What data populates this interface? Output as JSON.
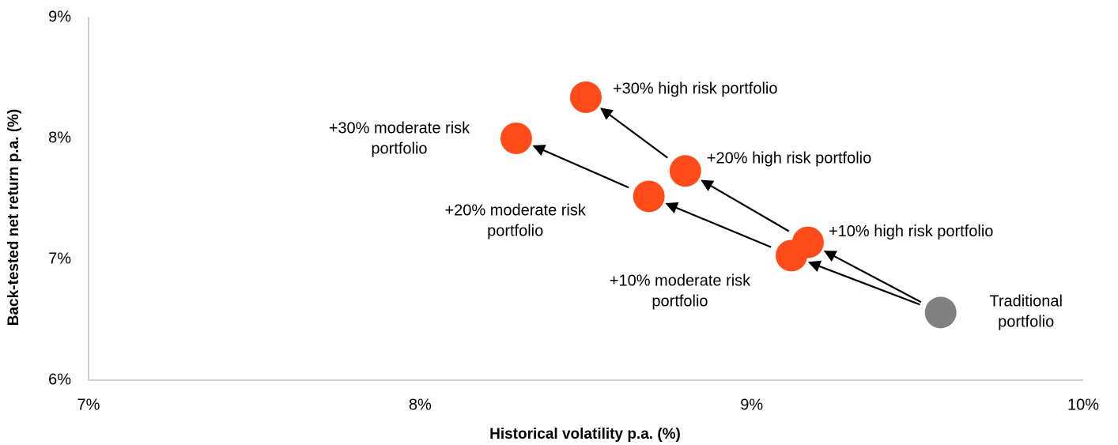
{
  "chart_data": {
    "type": "scatter",
    "xlabel": "Historical volatility p.a. (%)",
    "ylabel": "Back-tested net return p.a. (%)",
    "xlim": [
      7,
      10
    ],
    "xticks": [
      {
        "value": 7,
        "label": "7%"
      },
      {
        "value": 8,
        "label": "8%"
      },
      {
        "value": 9,
        "label": "9%"
      },
      {
        "value": 10,
        "label": "10%"
      }
    ],
    "ylim": [
      6,
      9
    ],
    "yticks": [
      {
        "value": 6,
        "label": "6%"
      },
      {
        "value": 7,
        "label": "7%"
      },
      {
        "value": 8,
        "label": "8%"
      },
      {
        "value": 9,
        "label": "9%"
      }
    ],
    "points": [
      {
        "label": [
          "Traditional",
          "portfolio"
        ],
        "x": 9.57,
        "y": 6.56,
        "color": "#808080"
      },
      {
        "label": [
          "+10% moderate risk",
          "portfolio"
        ],
        "x": 9.12,
        "y": 7.03,
        "color": "#ff4c1a"
      },
      {
        "label": [
          "+10% high risk portfolio"
        ],
        "x": 9.17,
        "y": 7.14,
        "color": "#ff4c1a"
      },
      {
        "label": [
          "+20% moderate risk",
          "portfolio"
        ],
        "x": 8.69,
        "y": 7.52,
        "color": "#ff4c1a"
      },
      {
        "label": [
          "+20% high risk portfolio"
        ],
        "x": 8.8,
        "y": 7.73,
        "color": "#ff4c1a"
      },
      {
        "label": [
          "+30% moderate risk",
          "portfolio"
        ],
        "x": 8.29,
        "y": 8.0,
        "color": "#ff4c1a"
      },
      {
        "label": [
          "+30% high risk portfolio"
        ],
        "x": 8.5,
        "y": 8.34,
        "color": "#ff4c1a"
      }
    ]
  }
}
